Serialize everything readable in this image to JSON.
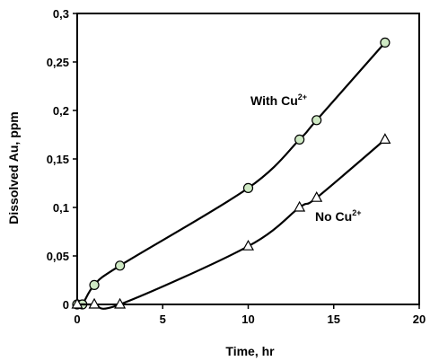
{
  "chart_data": {
    "type": "line",
    "xlabel": "Time, hr",
    "ylabel": "Dissolved Au, ppm",
    "xlim": [
      0,
      20
    ],
    "ylim": [
      0,
      0.3
    ],
    "xticks": [
      0,
      5,
      10,
      15,
      20
    ],
    "yticks": [
      0,
      0.05,
      0.1,
      0.15,
      0.2,
      0.25,
      0.3
    ],
    "xtick_labels": [
      "0",
      "5",
      "10",
      "15",
      "20"
    ],
    "ytick_labels": [
      "0",
      "0,05",
      "0,1",
      "0,15",
      "0,2",
      "0,25",
      "0,3"
    ],
    "grid": false,
    "series": [
      {
        "label_base": "With Cu",
        "label_sup": "2+",
        "marker": "circle",
        "marker_fill": "#cfe9c4",
        "x": [
          0,
          0.3,
          1,
          2.5,
          10,
          13,
          14,
          18
        ],
        "y": [
          0,
          0,
          0.02,
          0.04,
          0.12,
          0.17,
          0.19,
          0.27
        ]
      },
      {
        "label_base": "No Cu",
        "label_sup": "2+",
        "marker": "triangle",
        "marker_fill": "#ffffff",
        "x": [
          0,
          1,
          2.5,
          10,
          13,
          14,
          18
        ],
        "y": [
          0,
          0,
          0,
          0.06,
          0.1,
          0.11,
          0.17
        ]
      }
    ]
  }
}
